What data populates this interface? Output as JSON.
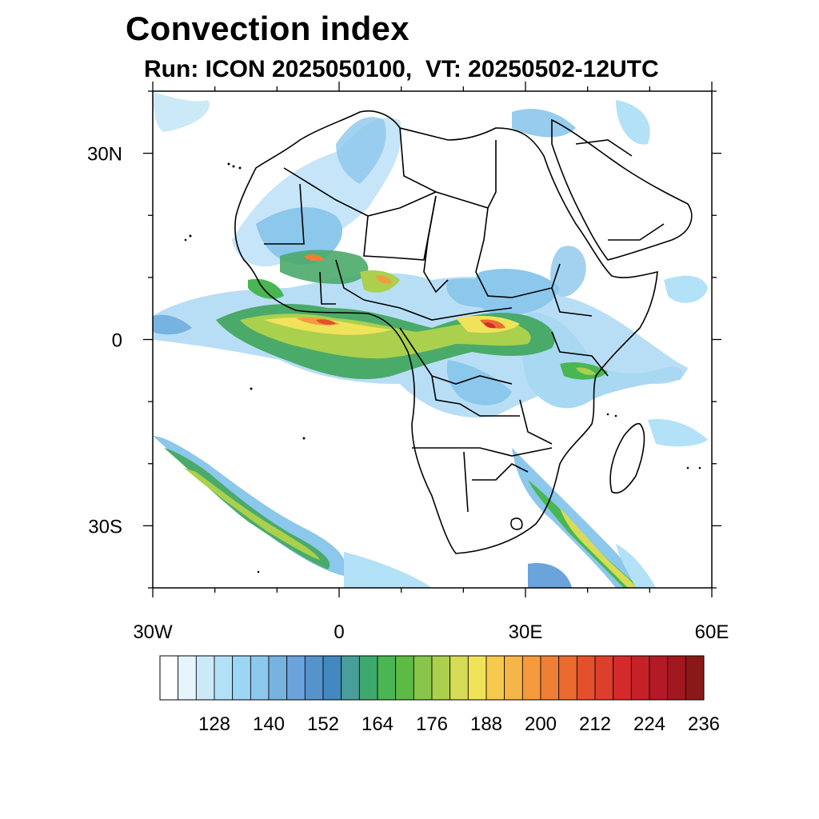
{
  "title": "Convection index",
  "subtitle": "Run: ICON 2025050100,  VT: 20250502-12UTC",
  "map": {
    "region": "Africa",
    "lon_range": [
      -30,
      60
    ],
    "lat_range": [
      -40,
      40
    ],
    "x_ticks": [
      {
        "label": "30W",
        "value": -30
      },
      {
        "label": "0",
        "value": 0
      },
      {
        "label": "30E",
        "value": 30
      },
      {
        "label": "60E",
        "value": 60
      }
    ],
    "y_ticks": [
      {
        "label": "30N",
        "value": 30
      },
      {
        "label": "0",
        "value": 0
      },
      {
        "label": "30S",
        "value": -30
      }
    ]
  },
  "colorbar": {
    "labels": [
      "128",
      "140",
      "152",
      "164",
      "176",
      "188",
      "200",
      "212",
      "224",
      "236"
    ],
    "colors": [
      "#ffffff",
      "#e6f4fc",
      "#cce9f8",
      "#b3e1f7",
      "#9dd6f4",
      "#8cc7ec",
      "#77b3e1",
      "#6ba3dc",
      "#5593cb",
      "#4189c0",
      "#4a9e9a",
      "#3ea96d",
      "#49b653",
      "#5dbb45",
      "#8ac54b",
      "#aad04e",
      "#d6dc55",
      "#f0e35a",
      "#f6c94f",
      "#f5b548",
      "#f59b3e",
      "#ef7f36",
      "#ea6a30",
      "#e2502c",
      "#dc3f2b",
      "#d42a2c",
      "#c52129",
      "#b41a26",
      "#a11820",
      "#8b1818"
    ]
  }
}
